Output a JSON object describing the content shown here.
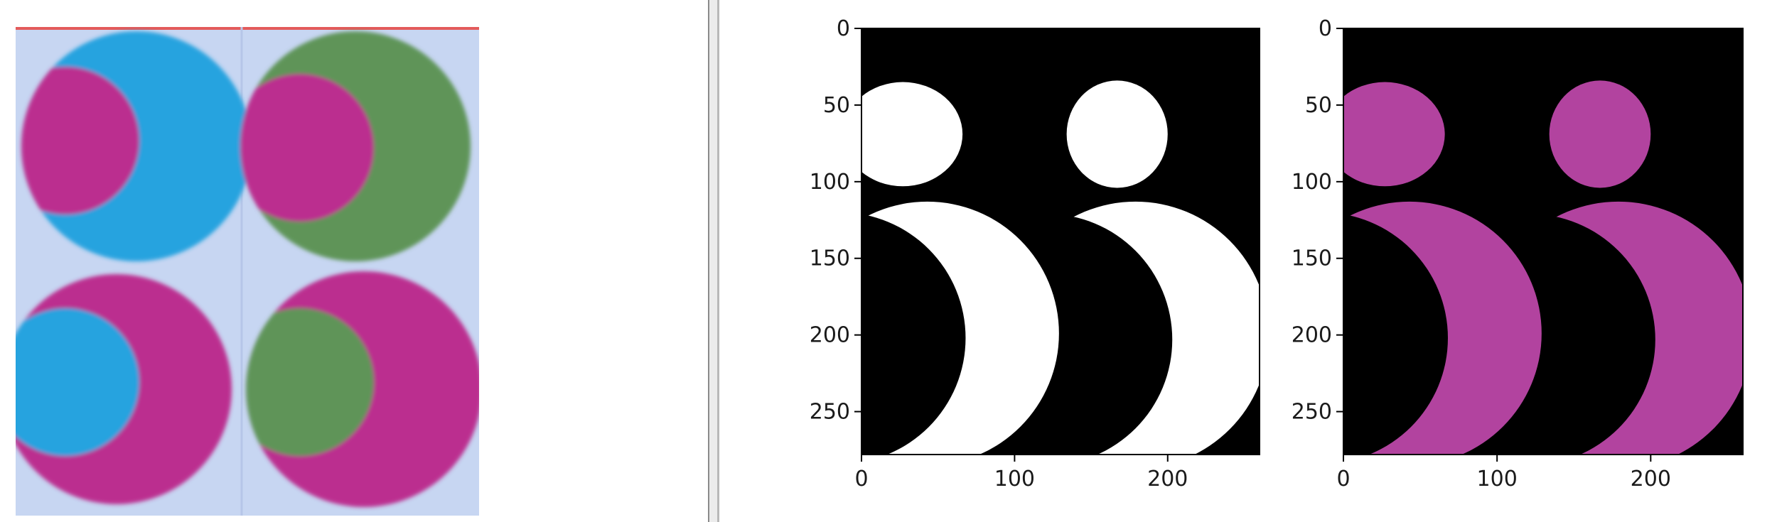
{
  "left_image": {
    "description_icon": "photo-icon"
  },
  "subplots": [
    {
      "name": "mask",
      "x_ticks": [
        "0",
        "100",
        "200"
      ],
      "y_ticks": [
        "0",
        "50",
        "100",
        "150",
        "200",
        "250"
      ],
      "x_range": [
        0,
        260
      ],
      "y_range": [
        0,
        278
      ],
      "fg": "#ffffff",
      "bg": "#000000"
    },
    {
      "name": "masked-color",
      "x_ticks": [
        "0",
        "100",
        "200"
      ],
      "y_ticks": [
        "0",
        "50",
        "100",
        "150",
        "200",
        "250"
      ],
      "x_range": [
        0,
        260
      ],
      "y_range": [
        0,
        278
      ],
      "fg": "#b2439f",
      "bg": "#000000"
    }
  ],
  "colors": {
    "photo_bg": "#c7d6f2",
    "cyan": "#27a3df",
    "magenta": "#bb2f8f",
    "green": "#5e9459",
    "accent_line": "#e35b5b"
  }
}
